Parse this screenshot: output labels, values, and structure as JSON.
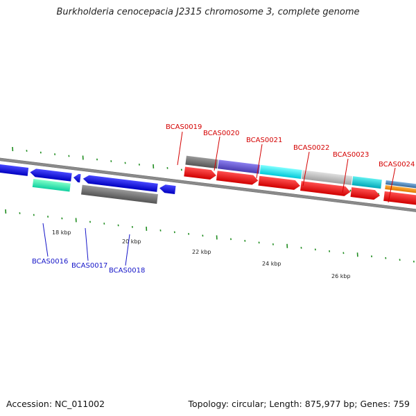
{
  "title": "Burkholderia cenocepacia J2315 chromosome 3, complete genome",
  "footer": {
    "accession": "Accession: NC_011002",
    "summary": "Topology: circular; Length: 875,977 bp; Genes: 759"
  },
  "colors": {
    "backbone": "#8c8c8c",
    "tick": "#1e8c1e",
    "top_label": "#d40000",
    "bottom_label": "#1414c8",
    "cds": "#ff0000"
  },
  "scale": {
    "kbp_labels": [
      "18 kbp",
      "20 kbp",
      "22 kbp",
      "24 kbp",
      "26 kbp"
    ]
  },
  "gene_labels": {
    "top": [
      "BCAS0019",
      "BCAS0020",
      "BCAS0021",
      "BCAS0022",
      "BCAS0023",
      "BCAS0024"
    ],
    "bottom": [
      "BCAS0016",
      "BCAS0017",
      "BCAS0018"
    ]
  },
  "features": {
    "forward_functional_colors": [
      "#808080",
      "#7060d8",
      "#00e8f0",
      "#c0c0c0",
      "#10d0d8",
      "#4a80b8"
    ],
    "forward_cds_count": 7,
    "reverse_strand_colors": [
      "#0000f0",
      "#0000f0",
      "#0000f0",
      "#0000f0"
    ],
    "reverse_functional_colors": [
      "#40f0a0",
      "#707070"
    ]
  }
}
